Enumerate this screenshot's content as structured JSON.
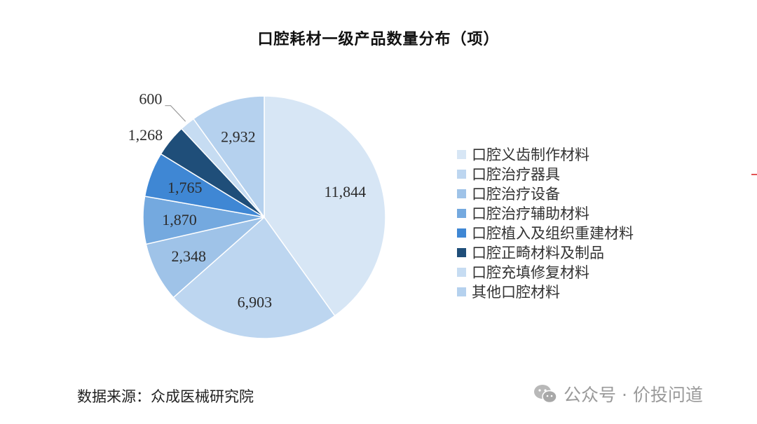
{
  "chart_data": {
    "type": "pie",
    "title": "口腔耗材一级产品数量分布（项）",
    "slices": [
      {
        "label": "口腔义齿制作材料",
        "value": 11844,
        "display": "11,844",
        "color": "#d7e6f5"
      },
      {
        "label": "口腔治疗器具",
        "value": 6903,
        "display": "6,903",
        "color": "#bdd6f0"
      },
      {
        "label": "口腔治疗设备",
        "value": 2348,
        "display": "2,348",
        "color": "#9fc3e8"
      },
      {
        "label": "口腔治疗辅助材料",
        "value": 1870,
        "display": "1,870",
        "color": "#74a9df"
      },
      {
        "label": "口腔植入及组织重建材料",
        "value": 1765,
        "display": "1,765",
        "color": "#3f87d4"
      },
      {
        "label": "口腔正畸材料及制品",
        "value": 1268,
        "display": "1,268",
        "color": "#1f4e79"
      },
      {
        "label": "口腔充填修复材料",
        "value": 600,
        "display": "600",
        "color": "#c6dcf2"
      },
      {
        "label": "其他口腔材料",
        "value": 2932,
        "display": "2,932",
        "color": "#b5d1ee"
      }
    ],
    "legend_position": "right"
  },
  "source_note": "数据来源：众成医械研究院",
  "watermark": {
    "text": "公众号 · 价投问道",
    "icon": "wechat-icon"
  }
}
